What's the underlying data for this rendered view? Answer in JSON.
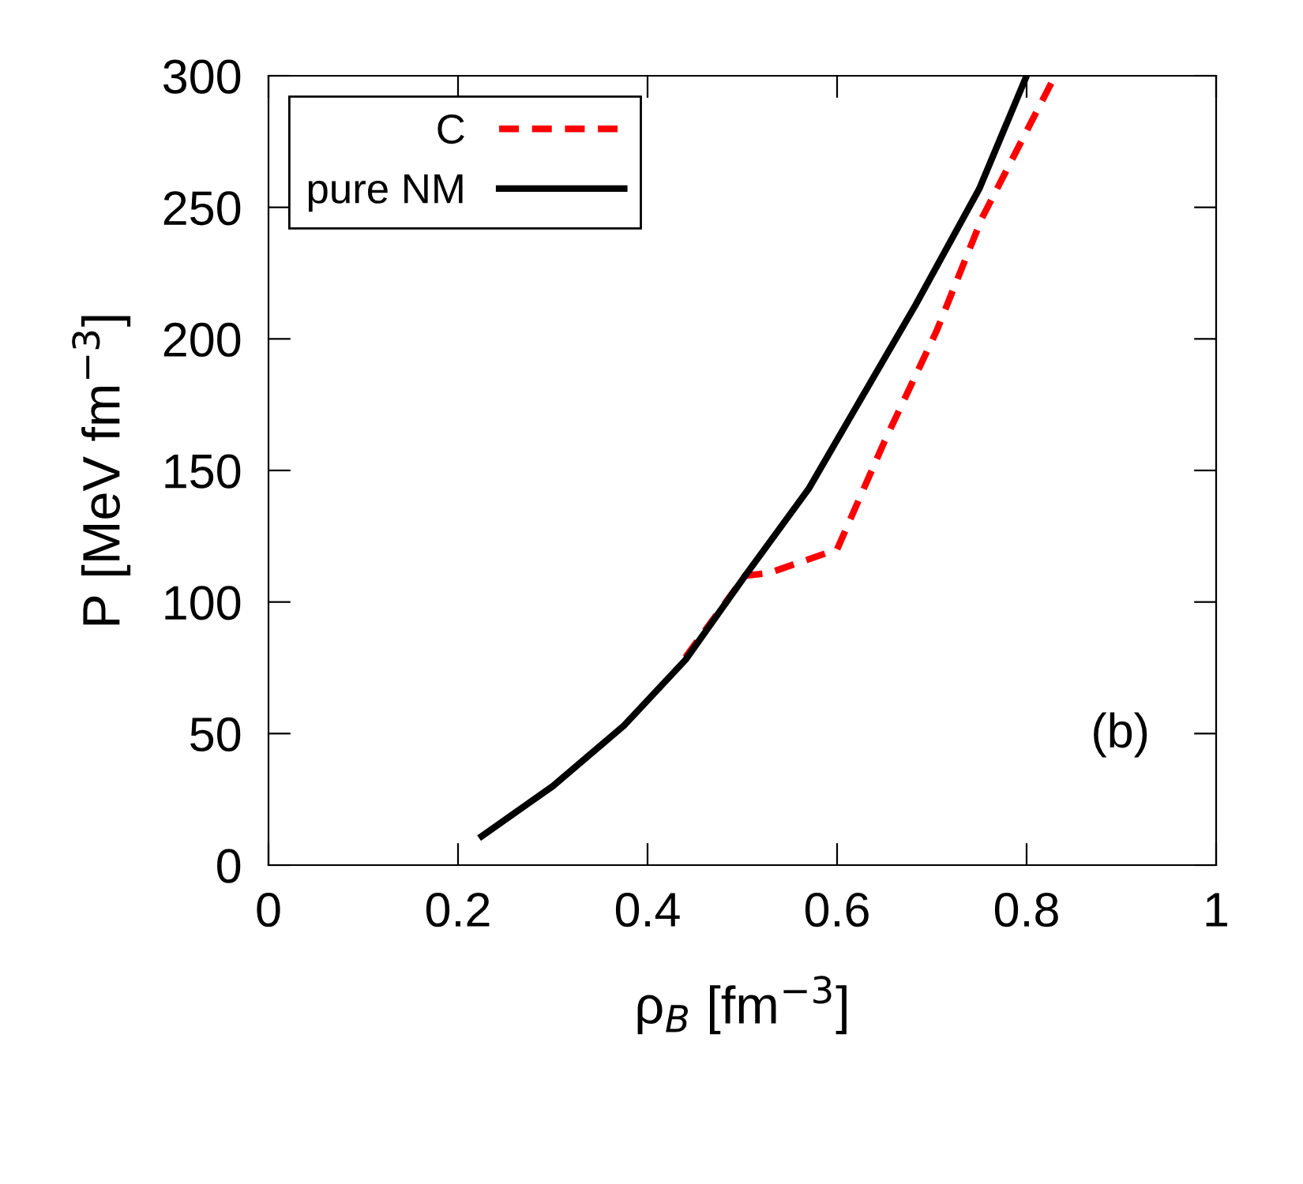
{
  "chart_data": {
    "type": "line",
    "xlabel": "ρ$_{B}$ [fm$^{−3}$]",
    "ylabel": "P [MeV fm$^{−3}$]",
    "xlim": [
      0,
      1
    ],
    "ylim": [
      0,
      300
    ],
    "xticks": [
      0,
      0.2,
      0.4,
      0.6,
      0.8,
      1
    ],
    "yticks": [
      0,
      50,
      100,
      150,
      200,
      250,
      300
    ],
    "grid": false,
    "legend": "top left",
    "line_style": "solid",
    "marker": "none",
    "annotations": [
      "(b)"
    ],
    "series": [
      {
        "name": "C",
        "color": "#ff0000",
        "line_style": "dashed",
        "x": [
          0.44,
          0.503,
          0.528,
          0.6,
          0.65,
          0.705,
          0.753,
          0.83
        ],
        "values": [
          79,
          110,
          111,
          120,
          161,
          203,
          246,
          300
        ]
      },
      {
        "name": "pure NM",
        "color": "#000000",
        "x": [
          0.225,
          0.3,
          0.375,
          0.44,
          0.503,
          0.57,
          0.62,
          0.683,
          0.75,
          0.8
        ],
        "values": [
          11,
          30,
          53,
          78,
          110,
          143,
          174,
          213,
          257,
          300
        ]
      }
    ]
  }
}
